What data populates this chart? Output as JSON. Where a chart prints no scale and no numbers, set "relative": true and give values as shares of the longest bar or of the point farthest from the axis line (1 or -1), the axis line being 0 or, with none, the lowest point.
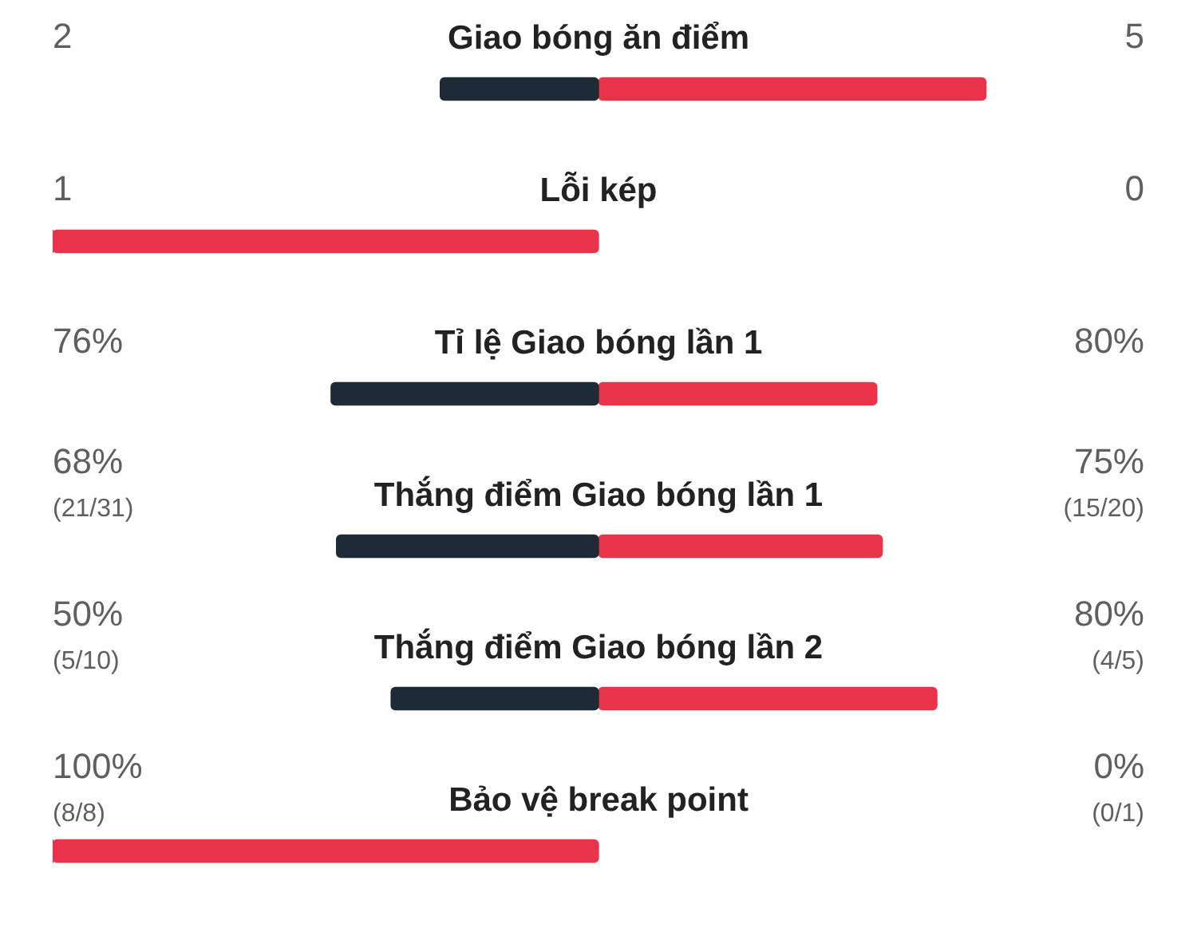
{
  "chart_data": {
    "type": "bar",
    "orientation": "horizontal",
    "stacked": true,
    "relative": true,
    "categories": [
      "Giao bóng ăn điểm",
      "Lỗi kép",
      "Tỉ lệ Giao bóng lần 1",
      "Thắng điểm Giao bóng lần 1",
      "Thắng điểm Giao bóng lần 2",
      "Bảo vệ break point"
    ],
    "series": [
      {
        "values": [
          -0.29,
          -1,
          -0.49,
          -0.48,
          -0.38,
          -1
        ],
        "colors": [
          "#1e2a36",
          "#e8334a",
          "#1e2a36",
          "#1e2a36",
          "#1e2a36",
          "#e8334a"
        ]
      },
      {
        "values": [
          0.71,
          0,
          0.51,
          0.52,
          0.62,
          0
        ],
        "colors": [
          "#e8334a",
          "#1e2a36",
          "#e8334a",
          "#e8334a",
          "#e8334a",
          "#1e2a36"
        ]
      }
    ],
    "annotations": [
      "2",
      "5",
      "1",
      "0",
      "76%",
      "80%",
      "68%\n(21/31)",
      "75%\n(15/20)",
      "50%\n(5/10)",
      "80%\n(4/5)",
      "100%\n(8/8)",
      "0%\n(0/1)"
    ]
  }
}
